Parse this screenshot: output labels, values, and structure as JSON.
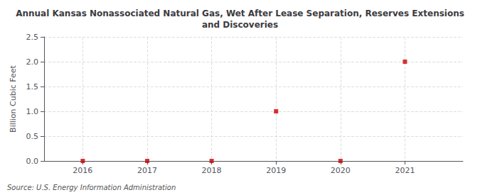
{
  "chart_data": {
    "type": "scatter",
    "title": "Annual Kansas Nonassociated Natural Gas, Wet After Lease Separation, Reserves Extensions\nand Discoveries",
    "ylabel": "Billion Cubic Feet",
    "source": "Source: U.S. Energy Information Administration",
    "x": [
      2016,
      2017,
      2018,
      2019,
      2020,
      2021
    ],
    "values": [
      0.0,
      0.0,
      0.0,
      1.0,
      0.0,
      2.0
    ],
    "color": "#cc0000",
    "marker": "square",
    "xlim": [
      2015.4,
      2021.9
    ],
    "xticks": [
      2016,
      2017,
      2018,
      2019,
      2020,
      2021
    ],
    "ylim": [
      0.0,
      2.5
    ],
    "yticks": [
      {
        "value": 0.0,
        "label": "0.0"
      },
      0.5,
      {
        "value": 1.0,
        "label": "1.0"
      },
      1.5,
      {
        "value": 2.0,
        "label": "2.0"
      },
      2.5
    ],
    "grid": true
  }
}
